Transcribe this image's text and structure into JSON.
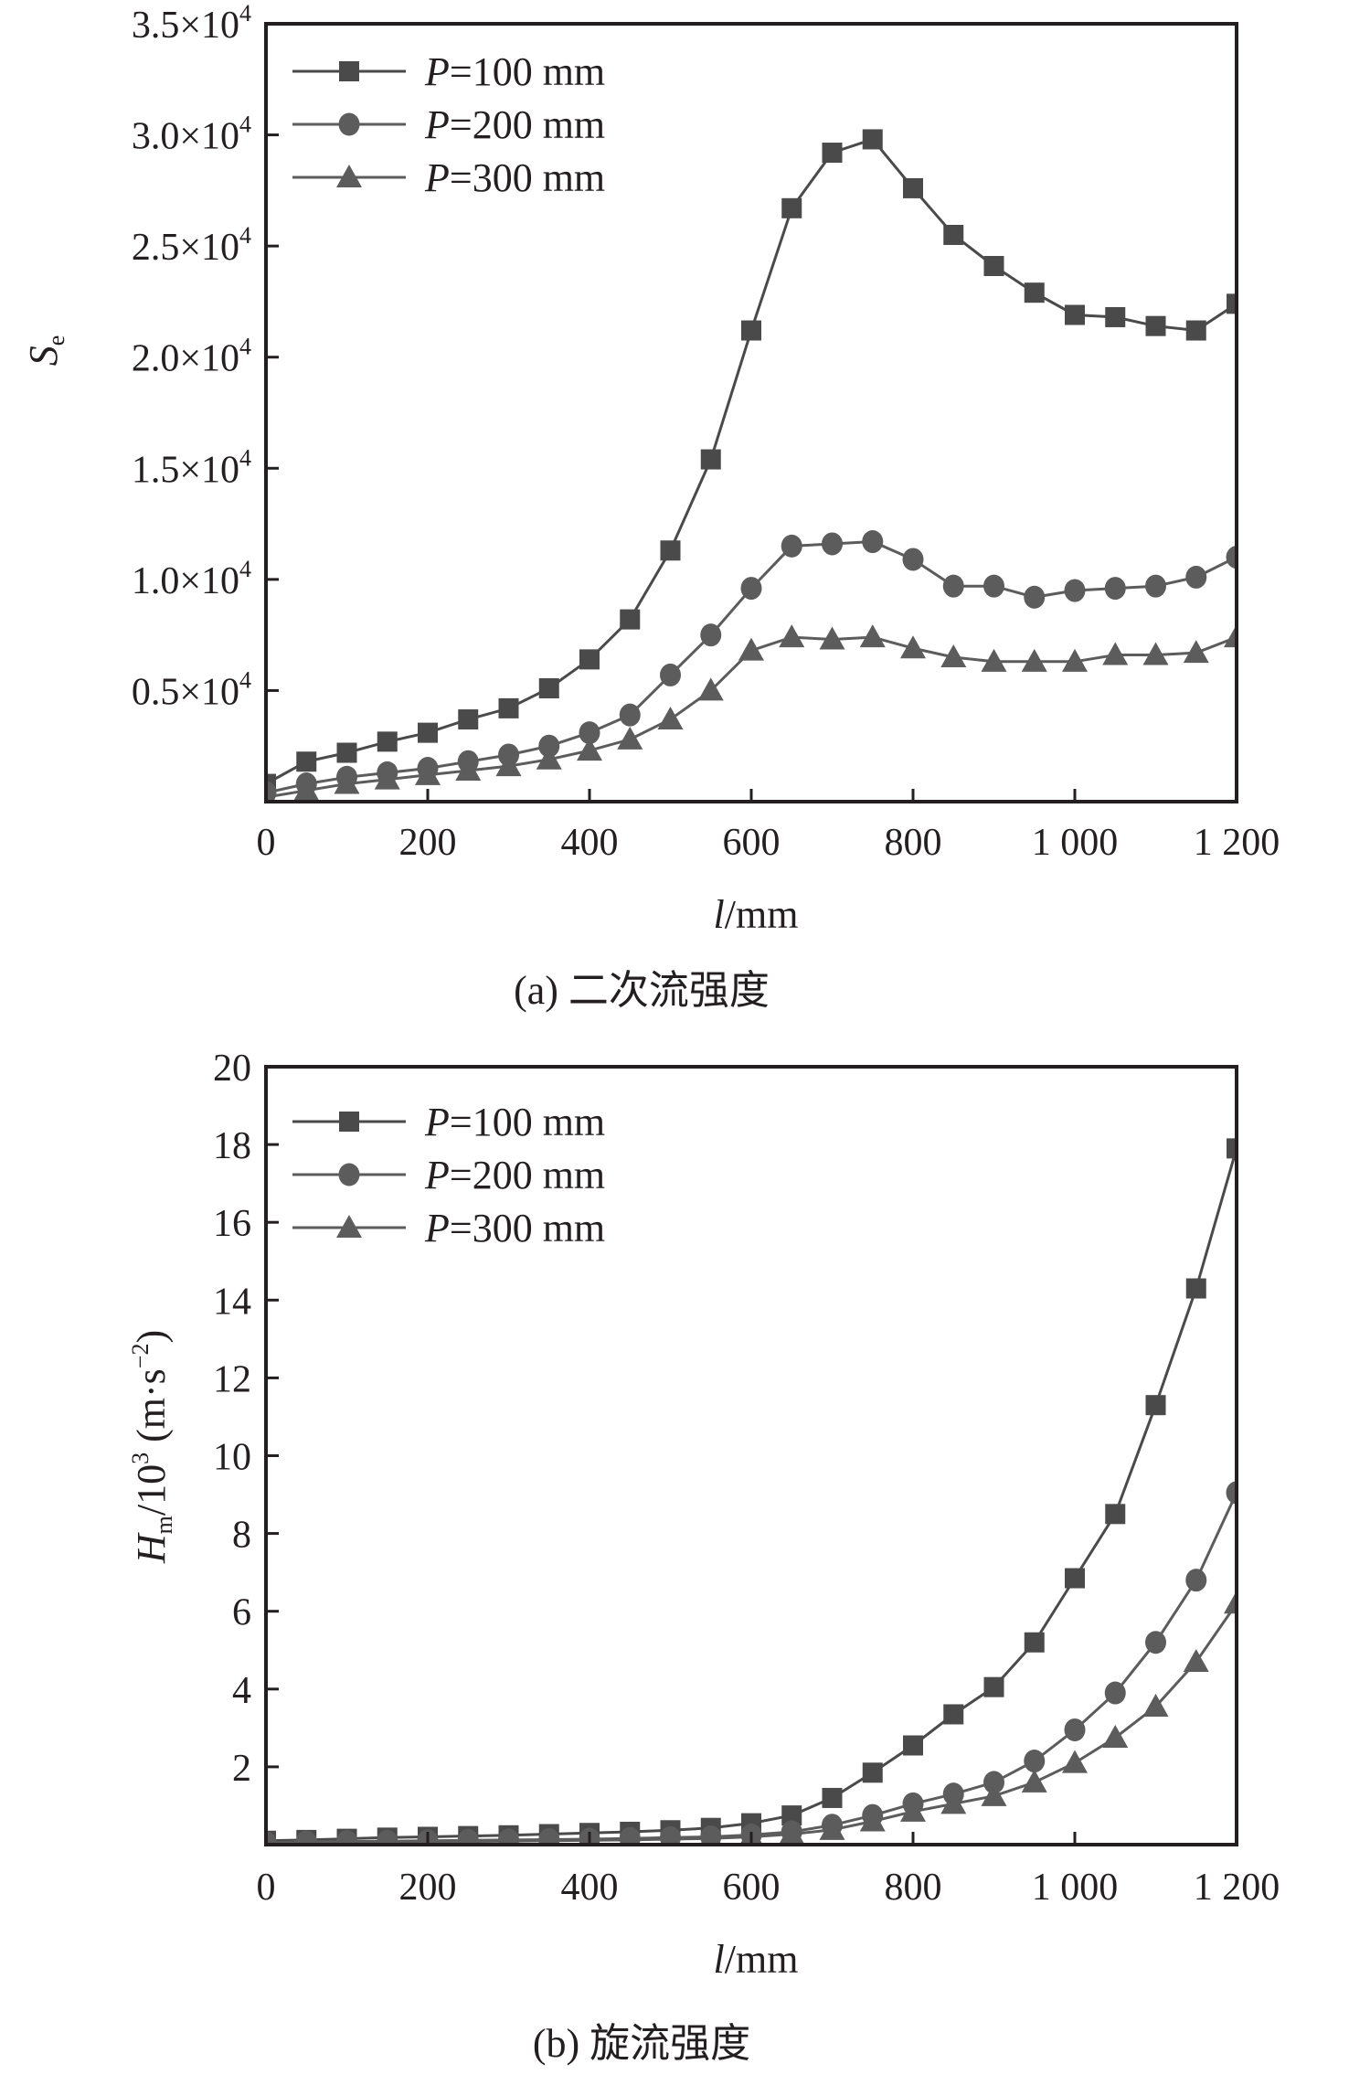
{
  "chart_data": [
    {
      "id": "a",
      "type": "line",
      "caption": "(a) 二次流强度",
      "xlabel_italic": "l",
      "xlabel_unit": "/mm",
      "ylabel_main": "S",
      "ylabel_sub": "e",
      "xlim": [
        0,
        1200
      ],
      "ylim": [
        0,
        35000
      ],
      "grid": false,
      "legend_position": "top-left",
      "x_ticks": [
        {
          "value": 0,
          "label": "0"
        },
        {
          "value": 200,
          "label": "200"
        },
        {
          "value": 400,
          "label": "400"
        },
        {
          "value": 600,
          "label": "600"
        },
        {
          "value": 800,
          "label": "800"
        },
        {
          "value": 1000,
          "label": "1 000"
        },
        {
          "value": 1200,
          "label": "1 200"
        }
      ],
      "y_ticks": [
        {
          "value": 5000,
          "mant": "0.5×10",
          "exp": "4"
        },
        {
          "value": 10000,
          "mant": "1.0×10",
          "exp": "4"
        },
        {
          "value": 15000,
          "mant": "1.5×10",
          "exp": "4"
        },
        {
          "value": 20000,
          "mant": "2.0×10",
          "exp": "4"
        },
        {
          "value": 25000,
          "mant": "2.5×10",
          "exp": "4"
        },
        {
          "value": 30000,
          "mant": "3.0×10",
          "exp": "4"
        },
        {
          "value": 35000,
          "mant": "3.5×10",
          "exp": "4"
        }
      ],
      "x": [
        0,
        50,
        100,
        150,
        200,
        250,
        300,
        350,
        400,
        450,
        500,
        550,
        600,
        650,
        700,
        750,
        800,
        850,
        900,
        950,
        1000,
        1050,
        1100,
        1150,
        1200
      ],
      "series": [
        {
          "name_italic": "P",
          "name_rest": "=100 mm",
          "marker": "square",
          "color": "#4a4a4a",
          "values": [
            800,
            1800,
            2200,
            2700,
            3100,
            3700,
            4200,
            5100,
            6400,
            8200,
            11300,
            15400,
            21200,
            26700,
            29200,
            29800,
            27600,
            25500,
            24100,
            22900,
            21900,
            21800,
            21400,
            21200,
            22400
          ]
        },
        {
          "name_italic": "P",
          "name_rest": "=200 mm",
          "marker": "circle",
          "color": "#5c5c5c",
          "values": [
            400,
            800,
            1100,
            1300,
            1500,
            1800,
            2100,
            2500,
            3100,
            3900,
            5700,
            7500,
            9600,
            11500,
            11600,
            11700,
            10900,
            9700,
            9700,
            9200,
            9500,
            9600,
            9700,
            10100,
            11000
          ]
        },
        {
          "name_italic": "P",
          "name_rest": "=300 mm",
          "marker": "triangle",
          "color": "#5c5c5c",
          "values": [
            200,
            500,
            800,
            1000,
            1200,
            1400,
            1600,
            1900,
            2300,
            2800,
            3700,
            5000,
            6800,
            7400,
            7300,
            7400,
            6900,
            6500,
            6300,
            6300,
            6300,
            6600,
            6600,
            6700,
            7400
          ]
        }
      ]
    },
    {
      "id": "b",
      "type": "line",
      "caption": "(b) 旋流强度",
      "xlabel_italic": "l",
      "xlabel_unit": "/mm",
      "ylabel_main": "H",
      "ylabel_sub": "m",
      "ylabel_rest": "/10",
      "ylabel_sup": "3",
      "ylabel_unit": " (m·s",
      "ylabel_unit_sup": "−2",
      "ylabel_close": ")",
      "xlim": [
        0,
        1200
      ],
      "ylim": [
        0,
        20
      ],
      "grid": false,
      "legend_position": "top-left",
      "x_ticks": [
        {
          "value": 0,
          "label": "0"
        },
        {
          "value": 200,
          "label": "200"
        },
        {
          "value": 400,
          "label": "400"
        },
        {
          "value": 600,
          "label": "600"
        },
        {
          "value": 800,
          "label": "800"
        },
        {
          "value": 1000,
          "label": "1 000"
        },
        {
          "value": 1200,
          "label": "1 200"
        }
      ],
      "y_ticks": [
        {
          "value": 2,
          "label": "2"
        },
        {
          "value": 4,
          "label": "4"
        },
        {
          "value": 6,
          "label": "6"
        },
        {
          "value": 8,
          "label": "8"
        },
        {
          "value": 10,
          "label": "10"
        },
        {
          "value": 12,
          "label": "12"
        },
        {
          "value": 14,
          "label": "14"
        },
        {
          "value": 16,
          "label": "16"
        },
        {
          "value": 18,
          "label": "18"
        },
        {
          "value": 20,
          "label": "20"
        }
      ],
      "x": [
        0,
        50,
        100,
        150,
        200,
        250,
        300,
        350,
        400,
        450,
        500,
        550,
        600,
        650,
        700,
        750,
        800,
        850,
        900,
        950,
        1000,
        1050,
        1100,
        1150,
        1200
      ],
      "series": [
        {
          "name_italic": "P",
          "name_rest": "=100 mm",
          "marker": "square",
          "color": "#4a4a4a",
          "values": [
            0.1,
            0.12,
            0.15,
            0.18,
            0.2,
            0.22,
            0.24,
            0.27,
            0.3,
            0.33,
            0.37,
            0.43,
            0.55,
            0.75,
            1.2,
            1.85,
            2.55,
            3.35,
            4.05,
            5.2,
            6.85,
            8.5,
            11.3,
            14.3,
            17.9
          ]
        },
        {
          "name_italic": "P",
          "name_rest": "=200 mm",
          "marker": "circle",
          "color": "#5c5c5c",
          "values": [
            0.05,
            0.07,
            0.08,
            0.09,
            0.1,
            0.11,
            0.12,
            0.13,
            0.14,
            0.16,
            0.18,
            0.2,
            0.25,
            0.33,
            0.5,
            0.75,
            1.05,
            1.3,
            1.6,
            2.15,
            2.95,
            3.9,
            5.2,
            6.8,
            9.05
          ]
        },
        {
          "name_italic": "P",
          "name_rest": "=300 mm",
          "marker": "triangle",
          "color": "#5c5c5c",
          "values": [
            0.03,
            0.04,
            0.05,
            0.06,
            0.07,
            0.08,
            0.09,
            0.1,
            0.11,
            0.12,
            0.14,
            0.16,
            0.2,
            0.27,
            0.38,
            0.6,
            0.85,
            1.05,
            1.25,
            1.6,
            2.1,
            2.75,
            3.55,
            4.7,
            6.2
          ]
        }
      ]
    }
  ]
}
